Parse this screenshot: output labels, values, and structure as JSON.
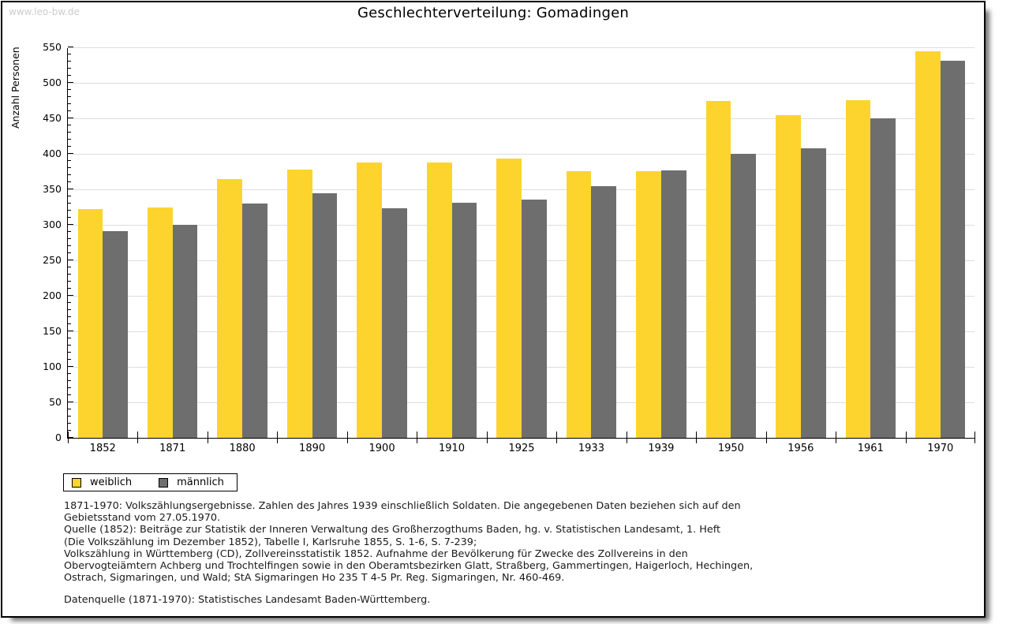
{
  "watermark": "www.leo-bw.de",
  "header": {
    "title": "Geschlechterverteilung: Gomadingen"
  },
  "chart_data": {
    "type": "bar",
    "title": "Geschlechterverteilung: Gomadingen",
    "xlabel": "",
    "ylabel": "Anzahl Personen",
    "ylim": [
      0,
      550
    ],
    "ytick_step": 50,
    "ytick_minor_step": 10,
    "grid": true,
    "legend_position": "bottom-left",
    "categories": [
      "1852",
      "1871",
      "1880",
      "1890",
      "1900",
      "1910",
      "1925",
      "1933",
      "1939",
      "1950",
      "1956",
      "1961",
      "1970"
    ],
    "series": [
      {
        "name": "weiblich",
        "color": "#FDD42E",
        "values": [
          322,
          325,
          364,
          378,
          388,
          388,
          393,
          376,
          376,
          474,
          454,
          476,
          545
        ]
      },
      {
        "name": "männlich",
        "color": "#6E6E6E",
        "values": [
          291,
          300,
          330,
          345,
          323,
          331,
          336,
          355,
          377,
          400,
          408,
          450,
          531
        ]
      }
    ]
  },
  "legend": {
    "items": [
      {
        "label": "weiblich",
        "color": "#FDD42E"
      },
      {
        "label": "männlich",
        "color": "#6E6E6E"
      }
    ]
  },
  "footnotes": {
    "lines": [
      "1871-1970: Volkszählungsergebnisse. Zahlen des Jahres 1939 einschließlich Soldaten. Die angegebenen Daten beziehen sich auf den",
      "Gebietsstand vom 27.05.1970.",
      "Quelle (1852): Beiträge zur Statistik der Inneren Verwaltung des Großherzogthums Baden, hg. v. Statistischen Landesamt, 1. Heft",
      "(Die Volkszählung im Dezember 1852), Tabelle I, Karlsruhe 1855, S. 1-6, S. 7-239;",
      "Volkszählung in Württemberg (CD), Zollvereinsstatistik 1852. Aufnahme der Bevölkerung für Zwecke des Zollvereins in den",
      "Obervogteiämtern Achberg und Trochtelfingen sowie in den Oberamtsbezirken Glatt, Straßberg, Gammertingen, Haigerloch, Hechingen,",
      "Ostrach, Sigmaringen, und Wald; StA Sigmaringen Ho 235 T 4-5 Pr. Reg. Sigmaringen, Nr. 460-469."
    ],
    "datasource": "Datenquelle (1871-1970): Statistisches Landesamt Baden-Württemberg."
  }
}
